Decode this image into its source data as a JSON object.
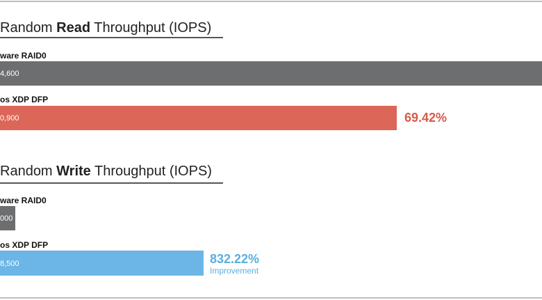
{
  "panels": [
    {
      "title": {
        "before": "Random ",
        "bold": "Read",
        "after": " Throughput (IOPS)"
      },
      "bars": [
        {
          "label": "ware RAID0",
          "value_label": "4,600"
        },
        {
          "label": "os XDP DFP",
          "value_label": "0,900",
          "note": "69.42%"
        }
      ]
    },
    {
      "title": {
        "before": "Random ",
        "bold": "Write",
        "after": " Throughput (IOPS)"
      },
      "bars": [
        {
          "label": "ware RAID0",
          "value_label": "000"
        },
        {
          "label": "os XDP DFP",
          "value_label": "8,500",
          "note": "832.22%",
          "subnote": "Improvement"
        }
      ]
    }
  ]
}
